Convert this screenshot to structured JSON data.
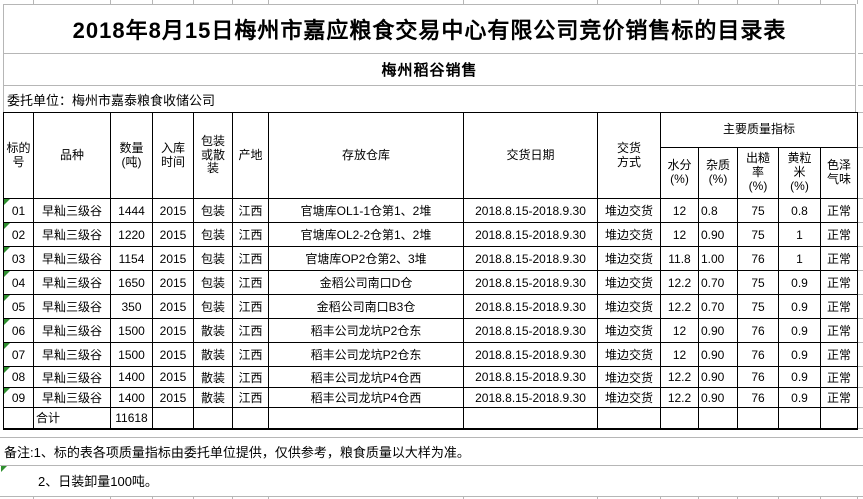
{
  "page": {
    "title": "2018年8月15日梅州市嘉应粮食交易中心有限公司竞价销售标的目录表",
    "subtitle": "梅州稻谷销售",
    "consignor": "委托单位：梅州市嘉泰粮食收储公司"
  },
  "table": {
    "quality_group_label": "主要质量指标",
    "columns": [
      {
        "key": "lot_no",
        "label": "标的\n号"
      },
      {
        "key": "variety",
        "label": "品种"
      },
      {
        "key": "quantity_tons",
        "label": "数量\n(吨)"
      },
      {
        "key": "storage_year",
        "label": "入库\n时间"
      },
      {
        "key": "packing",
        "label": "包装\n或散\n装"
      },
      {
        "key": "origin",
        "label": "产地"
      },
      {
        "key": "warehouse",
        "label": "存放仓库"
      },
      {
        "key": "delivery_date",
        "label": "交货日期"
      },
      {
        "key": "delivery_method",
        "label": "交货\n方式"
      },
      {
        "key": "moisture_pct",
        "label": "水分\n(%)"
      },
      {
        "key": "impurity_pct",
        "label": "杂质\n(%)"
      },
      {
        "key": "brown_rice_rate_pct",
        "label": "出糙\n率\n(%)"
      },
      {
        "key": "yellow_grain_pct",
        "label": "黄粒\n米\n(%)"
      },
      {
        "key": "color_odor",
        "label": "色泽\n气味"
      }
    ],
    "rows": [
      [
        "01",
        "早籼三级谷",
        "1444",
        "2015",
        "包装",
        "江西",
        "官塘库OL1-1仓第1、2堆",
        "2018.8.15-2018.9.30",
        "堆边交货",
        "12",
        "0.8",
        "75",
        "0.8",
        "正常"
      ],
      [
        "02",
        "早籼三级谷",
        "1220",
        "2015",
        "包装",
        "江西",
        "官塘库OL2-2仓第1、2堆",
        "2018.8.15-2018.9.30",
        "堆边交货",
        "12",
        "0.90",
        "75",
        "1",
        "正常"
      ],
      [
        "03",
        "早籼三级谷",
        "1154",
        "2015",
        "包装",
        "江西",
        "官塘库OP2仓第2、3堆",
        "2018.8.15-2018.9.30",
        "堆边交货",
        "11.8",
        "1.00",
        "76",
        "1",
        "正常"
      ],
      [
        "04",
        "早籼三级谷",
        "1650",
        "2015",
        "包装",
        "江西",
        "金稻公司南口D仓",
        "2018.8.15-2018.9.30",
        "堆边交货",
        "12.2",
        "0.70",
        "75",
        "0.9",
        "正常"
      ],
      [
        "05",
        "早籼三级谷",
        "350",
        "2015",
        "包装",
        "江西",
        "金稻公司南口B3仓",
        "2018.8.15-2018.9.30",
        "堆边交货",
        "12.2",
        "0.70",
        "75",
        "0.9",
        "正常"
      ],
      [
        "06",
        "早籼三级谷",
        "1500",
        "2015",
        "散装",
        "江西",
        "稻丰公司龙坑P2仓东",
        "2018.8.15-2018.9.30",
        "堆边交货",
        "12",
        "0.90",
        "76",
        "0.9",
        "正常"
      ],
      [
        "07",
        "早籼三级谷",
        "1500",
        "2015",
        "散装",
        "江西",
        "稻丰公司龙坑P2仓东",
        "2018.8.15-2018.9.30",
        "堆边交货",
        "12",
        "0.90",
        "76",
        "0.9",
        "正常"
      ],
      [
        "08",
        "早籼三级谷",
        "1400",
        "2015",
        "散装",
        "江西",
        "稻丰公司龙坑P4仓西",
        "2018.8.15-2018.9.30",
        "堆边交货",
        "12.2",
        "0.90",
        "76",
        "0.9",
        "正常"
      ],
      [
        "09",
        "早籼三级谷",
        "1400",
        "2015",
        "散装",
        "江西",
        "稻丰公司龙坑P4仓西",
        "2018.8.15-2018.9.30",
        "堆边交货",
        "12.2",
        "0.90",
        "76",
        "0.9",
        "正常"
      ]
    ],
    "total_row": {
      "label": "合计",
      "quantity": "11618"
    }
  },
  "notes": [
    "备注:1、标的表各项质量指标由委托单位提供，仅供参考，粮食质量以大样为准。",
    "2、日装卸量100吨。"
  ],
  "colors": {
    "flag_green": "#2f8f2f",
    "grid_gray": "#b6b6b6",
    "border_black": "#000000"
  }
}
